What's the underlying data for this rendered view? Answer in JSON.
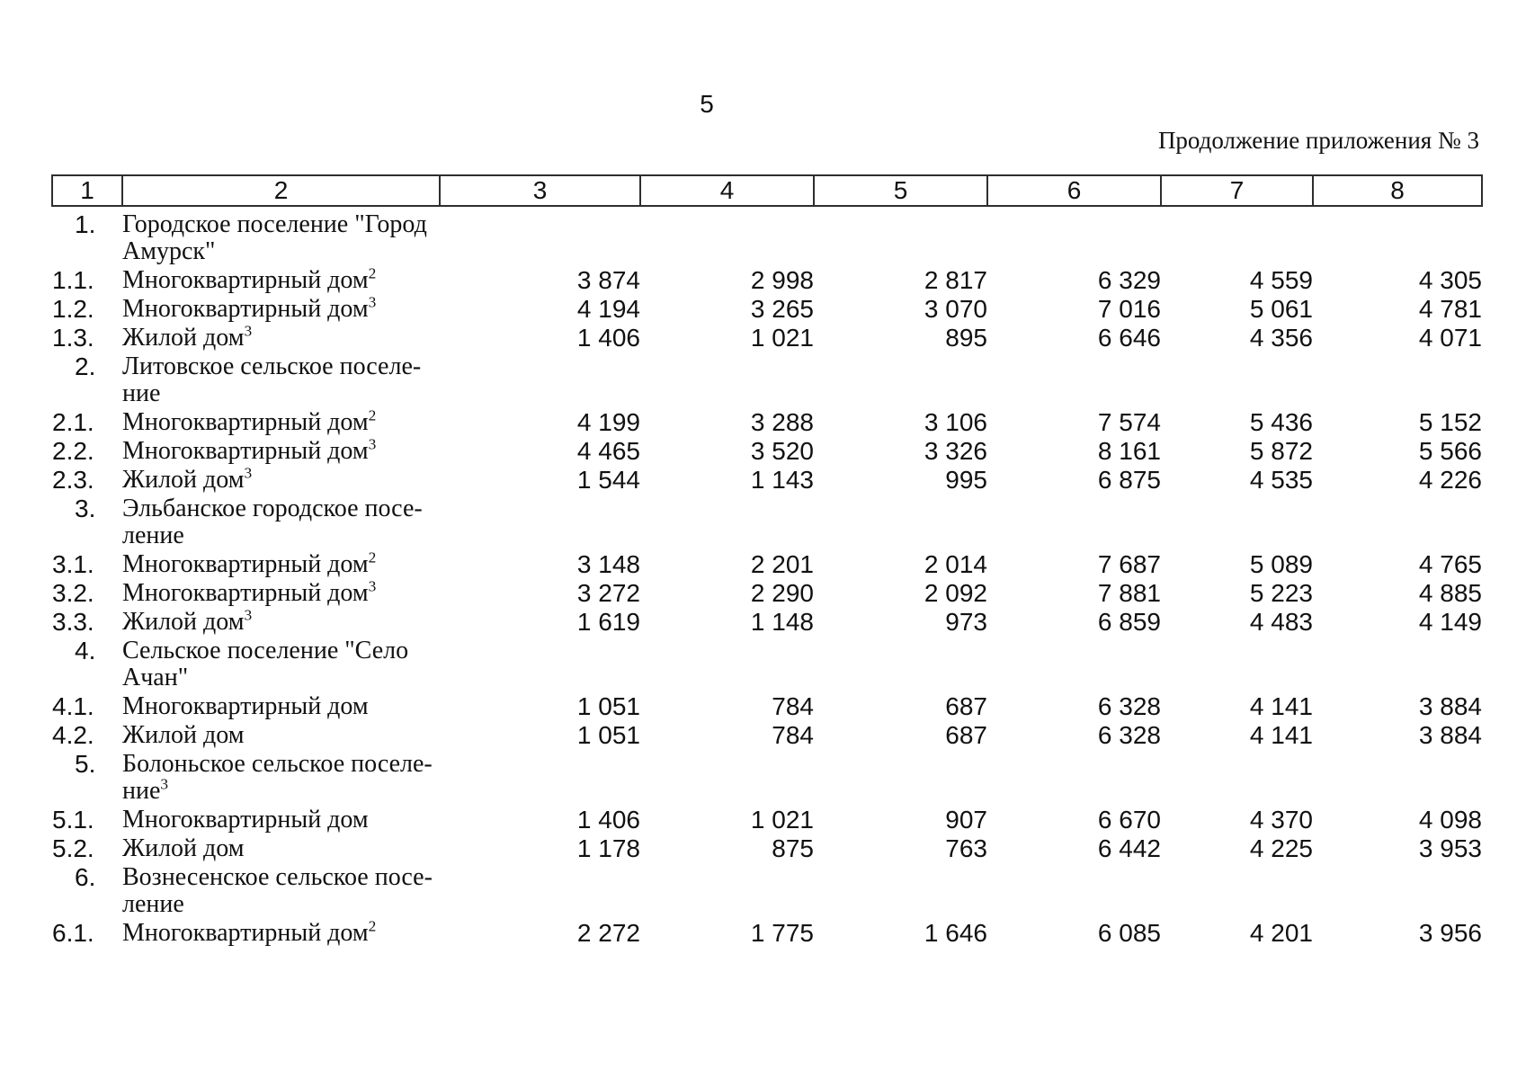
{
  "page": {
    "number": "5",
    "annotation": "Продолжение приложения № 3"
  },
  "table": {
    "header": [
      "1",
      "2",
      "3",
      "4",
      "5",
      "6",
      "7",
      "8"
    ],
    "rows": [
      {
        "type": "section",
        "num": "1.",
        "name": "Городское поселение \"Город\nАмурск\"",
        "sup": "",
        "values": [
          "",
          "",
          "",
          "",
          "",
          ""
        ]
      },
      {
        "type": "data",
        "num": "1.1.",
        "name": "Многоквартирный дом",
        "sup": "2",
        "values": [
          "3 874",
          "2 998",
          "2 817",
          "6 329",
          "4 559",
          "4 305"
        ]
      },
      {
        "type": "data",
        "num": "1.2.",
        "name": "Многоквартирный дом",
        "sup": "3",
        "values": [
          "4 194",
          "3 265",
          "3 070",
          "7 016",
          "5 061",
          "4 781"
        ]
      },
      {
        "type": "data",
        "num": "1.3.",
        "name": "Жилой дом",
        "sup": "3",
        "values": [
          "1 406",
          "1 021",
          "895",
          "6 646",
          "4 356",
          "4 071"
        ]
      },
      {
        "type": "section",
        "num": "2.",
        "name": "Литовское сельское поселе-\nние",
        "sup": "",
        "values": [
          "",
          "",
          "",
          "",
          "",
          ""
        ]
      },
      {
        "type": "data",
        "num": "2.1.",
        "name": "Многоквартирный дом",
        "sup": "2",
        "values": [
          "4 199",
          "3 288",
          "3 106",
          "7 574",
          "5 436",
          "5 152"
        ]
      },
      {
        "type": "data",
        "num": "2.2.",
        "name": "Многоквартирный дом",
        "sup": "3",
        "values": [
          "4 465",
          "3 520",
          "3 326",
          "8 161",
          "5 872",
          "5 566"
        ]
      },
      {
        "type": "data",
        "num": "2.3.",
        "name": "Жилой дом",
        "sup": "3",
        "values": [
          "1 544",
          "1 143",
          "995",
          "6 875",
          "4 535",
          "4 226"
        ]
      },
      {
        "type": "section",
        "num": "3.",
        "name": "Эльбанское городское посе-\nление",
        "sup": "",
        "values": [
          "",
          "",
          "",
          "",
          "",
          ""
        ]
      },
      {
        "type": "data",
        "num": "3.1.",
        "name": "Многоквартирный дом",
        "sup": "2",
        "values": [
          "3 148",
          "2 201",
          "2 014",
          "7 687",
          "5 089",
          "4 765"
        ]
      },
      {
        "type": "data",
        "num": "3.2.",
        "name": "Многоквартирный дом",
        "sup": "3",
        "values": [
          "3 272",
          "2 290",
          "2 092",
          "7 881",
          "5 223",
          "4 885"
        ]
      },
      {
        "type": "data",
        "num": "3.3.",
        "name": "Жилой дом",
        "sup": "3",
        "values": [
          "1 619",
          "1 148",
          "973",
          "6 859",
          "4 483",
          "4 149"
        ]
      },
      {
        "type": "section",
        "num": "4.",
        "name": "Сельское поселение \"Село\nАчан\"",
        "sup": "",
        "values": [
          "",
          "",
          "",
          "",
          "",
          ""
        ]
      },
      {
        "type": "data",
        "num": "4.1.",
        "name": "Многоквартирный дом",
        "sup": "",
        "values": [
          "1 051",
          "784",
          "687",
          "6 328",
          "4 141",
          "3 884"
        ]
      },
      {
        "type": "data",
        "num": "4.2.",
        "name": "Жилой дом",
        "sup": "",
        "values": [
          "1 051",
          "784",
          "687",
          "6 328",
          "4 141",
          "3 884"
        ]
      },
      {
        "type": "section",
        "num": "5.",
        "name": "Болоньское сельское поселе-\nние",
        "sup": "3",
        "values": [
          "",
          "",
          "",
          "",
          "",
          ""
        ]
      },
      {
        "type": "data",
        "num": "5.1.",
        "name": "Многоквартирный дом",
        "sup": "",
        "values": [
          "1 406",
          "1 021",
          "907",
          "6 670",
          "4 370",
          "4 098"
        ]
      },
      {
        "type": "data",
        "num": "5.2.",
        "name": "Жилой дом",
        "sup": "",
        "values": [
          "1 178",
          "875",
          "763",
          "6 442",
          "4 225",
          "3 953"
        ]
      },
      {
        "type": "section",
        "num": "6.",
        "name": "Вознесенское сельское посе-\nление",
        "sup": "",
        "values": [
          "",
          "",
          "",
          "",
          "",
          ""
        ]
      },
      {
        "type": "data",
        "num": "6.1.",
        "name": "Многоквартирный дом",
        "sup": "2",
        "values": [
          "2 272",
          "1 775",
          "1 646",
          "6 085",
          "4 201",
          "3 956"
        ]
      }
    ]
  }
}
